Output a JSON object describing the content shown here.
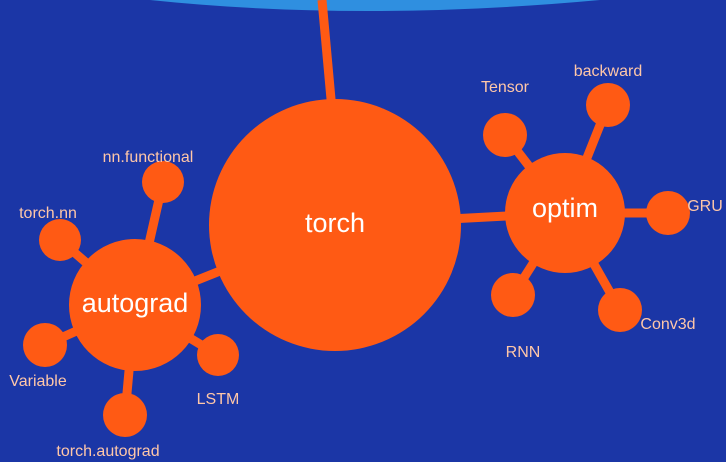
{
  "nodes": [
    {
      "label": "torch"
    },
    {
      "label": "optim"
    },
    {
      "label": "autograd"
    },
    {
      "label": "Tensor"
    },
    {
      "label": "backward"
    },
    {
      "label": "GRU"
    },
    {
      "label": "Conv3d"
    },
    {
      "label": "RNN"
    },
    {
      "label": "torch.nn"
    },
    {
      "label": "nn.functional"
    },
    {
      "label": "Variable"
    },
    {
      "label": "torch.autograd"
    },
    {
      "label": "LSTM"
    }
  ]
}
